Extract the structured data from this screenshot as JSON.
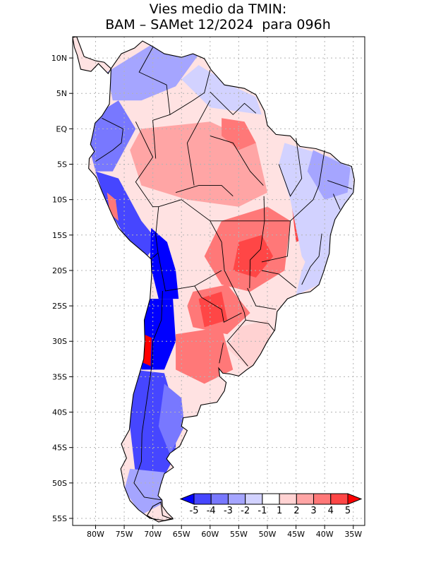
{
  "title": {
    "line1": "Vies medio da TMIN:",
    "line2": "BAM – SAMet 12/2024  para 096h"
  },
  "axes": {
    "lat_labels": [
      "10N",
      "5N",
      "EQ",
      "5S",
      "10S",
      "15S",
      "20S",
      "25S",
      "30S",
      "35S",
      "40S",
      "45S",
      "50S",
      "55S"
    ],
    "lat_values": [
      10,
      5,
      0,
      -5,
      -10,
      -15,
      -20,
      -25,
      -30,
      -35,
      -40,
      -45,
      -50,
      -55
    ],
    "lon_labels": [
      "80W",
      "75W",
      "70W",
      "65W",
      "60W",
      "55W",
      "50W",
      "45W",
      "40W",
      "35W"
    ],
    "lon_values": [
      -80,
      -75,
      -70,
      -65,
      -60,
      -55,
      -50,
      -45,
      -40,
      -35
    ],
    "lon_range": [
      -84,
      -33
    ],
    "lat_range": [
      13,
      -56
    ]
  },
  "colorbar": {
    "labels": [
      "-5",
      "-4",
      "-3",
      "-2",
      "-1",
      "1",
      "2",
      "3",
      "4",
      "5"
    ],
    "colors": [
      "#0000ff",
      "#4646ff",
      "#7878ff",
      "#a5a5ff",
      "#d2d2ff",
      "#ffffff",
      "#ffd2d2",
      "#ffa5a5",
      "#ff7878",
      "#ff4646",
      "#ff0000"
    ]
  },
  "colors": {
    "frame": "#000000",
    "grid": "#b4b4b4",
    "coast": "#000000"
  }
}
